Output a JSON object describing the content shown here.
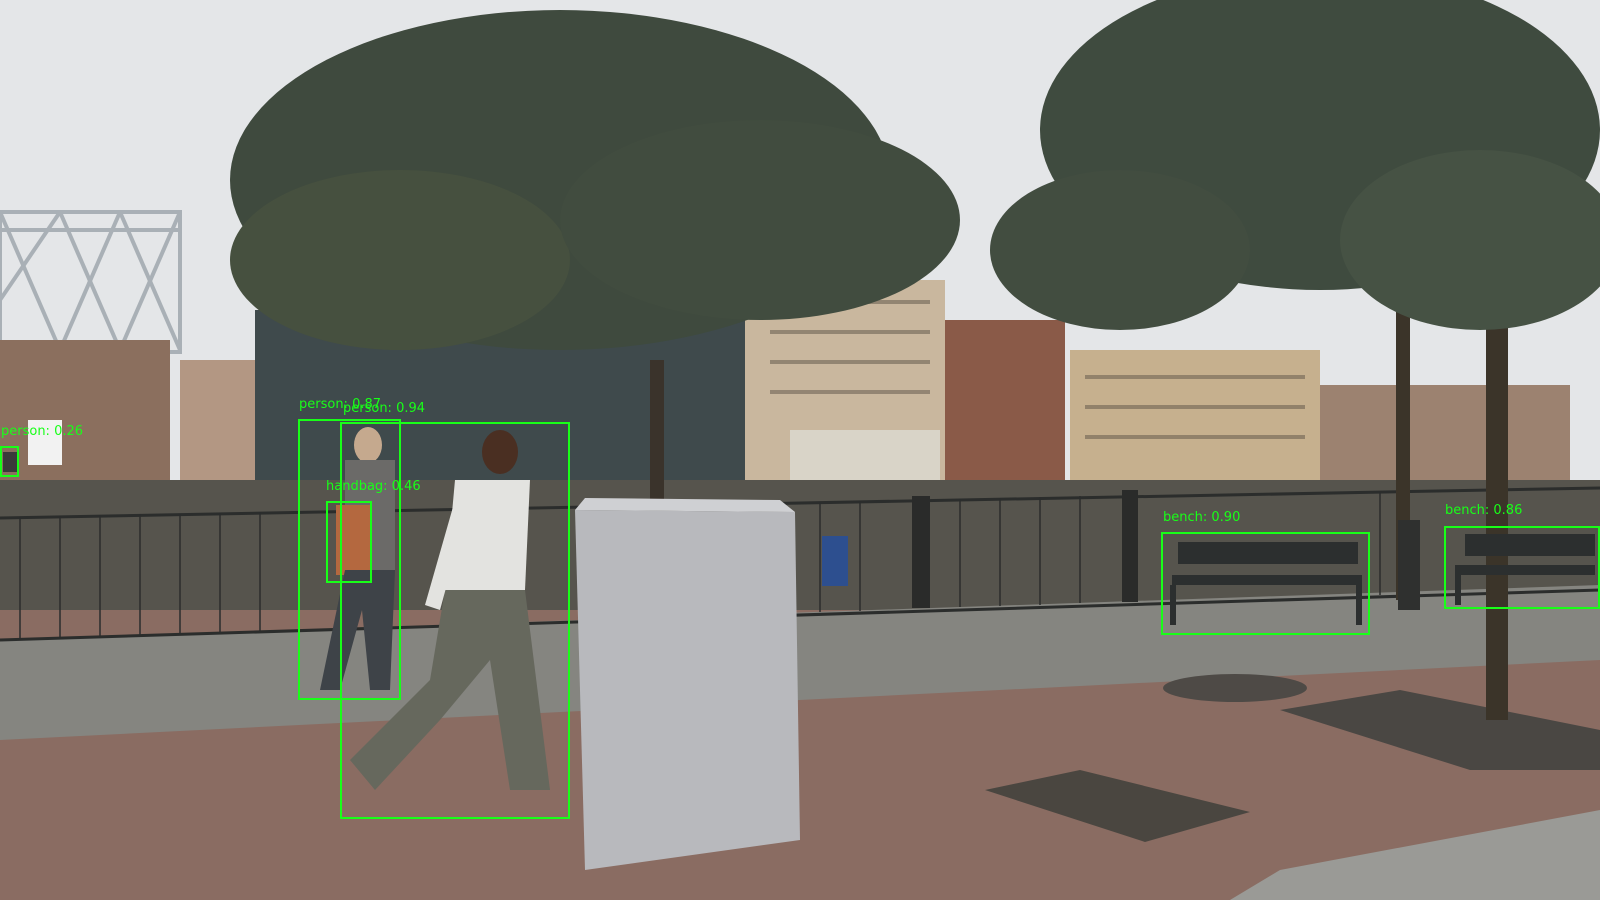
{
  "detections": [
    {
      "label": "person: 0.26",
      "class": "person",
      "score": 0.26
    },
    {
      "label": "person: 0.87",
      "class": "person",
      "score": 0.87
    },
    {
      "label": "person: 0.94",
      "class": "person",
      "score": 0.94
    },
    {
      "label": "handbag: 0.46",
      "class": "handbag",
      "score": 0.46
    },
    {
      "label": "bench: 0.90",
      "class": "bench",
      "score": 0.9
    },
    {
      "label": "bench: 0.86",
      "class": "bench",
      "score": 0.86
    }
  ],
  "colors": {
    "box": "#18ff18"
  }
}
